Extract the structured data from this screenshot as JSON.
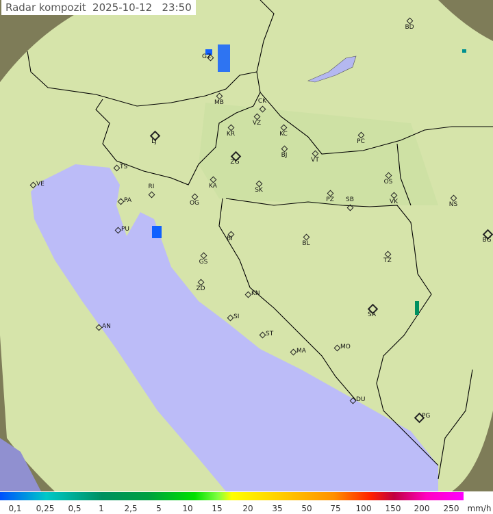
{
  "title": "Radar kompozit  2025-10-12   23:50",
  "colors": {
    "sea": "#bcbcf8",
    "land": "#d8e6a8",
    "outside_coverage": "#8a8860",
    "border": "#000000",
    "echo": "#1060ff"
  },
  "cities": [
    {
      "code": "BD"
    },
    {
      "code": "GZ"
    },
    {
      "code": "MB"
    },
    {
      "code": "CK"
    },
    {
      "code": "VZ"
    },
    {
      "code": "KR"
    },
    {
      "code": "KC"
    },
    {
      "code": "PC"
    },
    {
      "code": "LJ"
    },
    {
      "code": "ZG"
    },
    {
      "code": "BJ"
    },
    {
      "code": "VT"
    },
    {
      "code": "TS"
    },
    {
      "code": "VE"
    },
    {
      "code": "RI"
    },
    {
      "code": "KA"
    },
    {
      "code": "SK"
    },
    {
      "code": "OS"
    },
    {
      "code": "PA"
    },
    {
      "code": "OG"
    },
    {
      "code": "PZ"
    },
    {
      "code": "SB"
    },
    {
      "code": "VK"
    },
    {
      "code": "NS"
    },
    {
      "code": "PU"
    },
    {
      "code": "BI"
    },
    {
      "code": "BL"
    },
    {
      "code": "BG"
    },
    {
      "code": "TZ"
    },
    {
      "code": "GS"
    },
    {
      "code": "ZD"
    },
    {
      "code": "KN"
    },
    {
      "code": "SA"
    },
    {
      "code": "SI"
    },
    {
      "code": "AN"
    },
    {
      "code": "ST"
    },
    {
      "code": "MO"
    },
    {
      "code": "MA"
    },
    {
      "code": "DU"
    },
    {
      "code": "PG"
    }
  ],
  "legend": {
    "unit": "mm/h",
    "values": [
      "0,1",
      "0,25",
      "0,5",
      "1",
      "2,5",
      "5",
      "10",
      "15",
      "20",
      "35",
      "50",
      "75",
      "100",
      "150",
      "200",
      "250"
    ]
  }
}
